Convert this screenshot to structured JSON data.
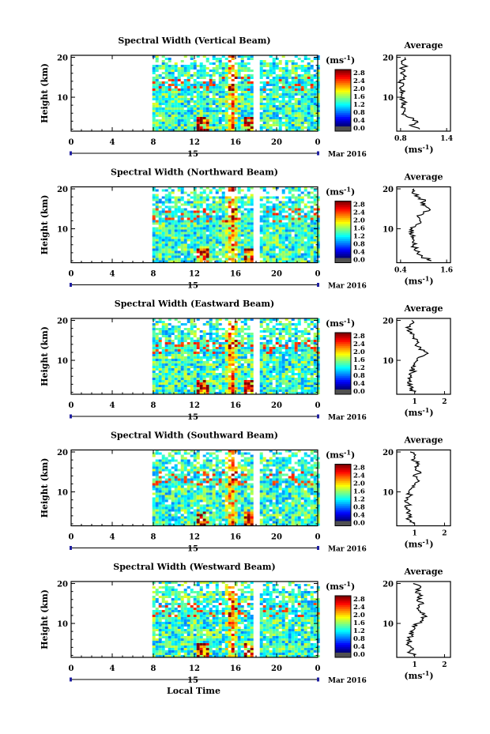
{
  "figure": {
    "xlabel_bottom": "Local Time",
    "date_label": "Mar 2016",
    "day_label": "15"
  },
  "colorbar": {
    "unit": "(ms",
    "unit_sup": "-1",
    "unit_close": ")",
    "ticks": [
      "2.8",
      "2.4",
      "2.0",
      "1.6",
      "1.2",
      "0.8",
      "0.4",
      "0.0"
    ],
    "colors": [
      "#ff2a00",
      "#ff7f00",
      "#ffd200",
      "#c8ff3c",
      "#3cffc8",
      "#00c8ff",
      "#0064ff",
      "#1e2aa0",
      "#505050"
    ]
  },
  "chart_data": [
    {
      "type": "heatmap",
      "title": "Spectral Width (Vertical Beam)",
      "ylabel": "Height (km)",
      "xlabel": "",
      "xlim": [
        0,
        24
      ],
      "ylim": [
        1.5,
        20.5
      ],
      "xticks": [
        "0",
        "4",
        "8",
        "12",
        "16",
        "20",
        "0"
      ],
      "yticks": [
        "20",
        "10"
      ],
      "data_start_hour": 7.9,
      "gap_hours": [
        17.6,
        18.1
      ],
      "value_range": [
        0,
        3.0
      ],
      "avg_title": "Average",
      "avg_xlabel": "(ms",
      "avg_xticks": [
        "0.8",
        "1.4"
      ],
      "avg_xlim": [
        0.75,
        1.45
      ],
      "profile": {
        "height": [
          2,
          3,
          4,
          5,
          6,
          7,
          8,
          9,
          10,
          11,
          12,
          13,
          14,
          15,
          16,
          17,
          18,
          19,
          20
        ],
        "width": [
          1.05,
          0.92,
          1.02,
          0.9,
          0.84,
          0.86,
          0.82,
          0.85,
          0.8,
          0.83,
          0.81,
          0.84,
          0.8,
          0.84,
          0.8,
          0.83,
          0.85,
          0.81,
          0.86
        ]
      }
    },
    {
      "type": "heatmap",
      "title": "Spectral Width (Northward Beam)",
      "ylabel": "Height (km)",
      "xlabel": "",
      "xlim": [
        0,
        24
      ],
      "ylim": [
        1.5,
        20.5
      ],
      "xticks": [
        "0",
        "4",
        "8",
        "12",
        "16",
        "20",
        "0"
      ],
      "yticks": [
        "20",
        "10"
      ],
      "data_start_hour": 7.9,
      "gap_hours": [
        17.6,
        18.1
      ],
      "value_range": [
        0,
        3.0
      ],
      "avg_title": "Average",
      "avg_xlabel": "(ms",
      "avg_xticks": [
        "0.4",
        "1.6"
      ],
      "avg_xlim": [
        0.3,
        1.7
      ],
      "profile": {
        "height": [
          2,
          3,
          4,
          5,
          6,
          7,
          8,
          9,
          10,
          11,
          12,
          13,
          14,
          15,
          16,
          17,
          18,
          19,
          20
        ],
        "width": [
          1.2,
          0.95,
          0.85,
          0.78,
          0.72,
          0.75,
          0.68,
          0.72,
          0.7,
          0.8,
          0.9,
          0.85,
          1.0,
          1.15,
          0.95,
          1.05,
          0.85,
          0.7,
          0.75
        ]
      }
    },
    {
      "type": "heatmap",
      "title": "Spectral Width (Eastward Beam)",
      "ylabel": "Height (km)",
      "xlabel": "",
      "xlim": [
        0,
        24
      ],
      "ylim": [
        1.5,
        20.5
      ],
      "xticks": [
        "0",
        "4",
        "8",
        "12",
        "16",
        "20",
        "0"
      ],
      "yticks": [
        "20",
        "10"
      ],
      "data_start_hour": 7.9,
      "gap_hours": [
        17.6,
        18.1
      ],
      "value_range": [
        0,
        3.0
      ],
      "avg_title": "Average",
      "avg_xlabel": "(ms",
      "avg_xticks": [
        "1",
        "2"
      ],
      "avg_xlim": [
        0.4,
        2.2
      ],
      "profile": {
        "height": [
          2,
          3,
          4,
          5,
          6,
          7,
          8,
          9,
          10,
          11,
          12,
          13,
          14,
          15,
          16,
          17,
          18,
          19,
          20
        ],
        "width": [
          1.0,
          0.85,
          0.9,
          0.82,
          0.86,
          0.95,
          0.9,
          1.0,
          1.1,
          1.25,
          1.4,
          1.2,
          1.05,
          1.1,
          0.95,
          0.9,
          0.8,
          0.85,
          0.9
        ]
      }
    },
    {
      "type": "heatmap",
      "title": "Spectral Width (Southward Beam)",
      "ylabel": "Height (km)",
      "xlabel": "",
      "xlim": [
        0,
        24
      ],
      "ylim": [
        1.5,
        20.5
      ],
      "xticks": [
        "0",
        "4",
        "8",
        "12",
        "16",
        "20",
        "0"
      ],
      "yticks": [
        "20",
        "10"
      ],
      "data_start_hour": 7.9,
      "gap_hours": [
        17.6,
        18.1
      ],
      "value_range": [
        0,
        3.0
      ],
      "avg_title": "Average",
      "avg_xlabel": "(ms",
      "avg_xticks": [
        "1",
        "2"
      ],
      "avg_xlim": [
        0.4,
        2.2
      ],
      "profile": {
        "height": [
          2,
          3,
          4,
          5,
          6,
          7,
          8,
          9,
          10,
          11,
          12,
          13,
          14,
          15,
          16,
          17,
          18,
          19,
          20
        ],
        "width": [
          0.95,
          0.82,
          0.8,
          0.78,
          0.75,
          0.8,
          0.76,
          0.85,
          0.8,
          0.9,
          1.0,
          1.1,
          0.95,
          1.2,
          1.05,
          1.15,
          0.9,
          1.0,
          0.85
        ]
      }
    },
    {
      "type": "heatmap",
      "title": "Spectral Width (Westward Beam)",
      "ylabel": "Height (km)",
      "xlabel": "",
      "xlim": [
        0,
        24
      ],
      "ylim": [
        1.5,
        20.5
      ],
      "xticks": [
        "0",
        "4",
        "8",
        "12",
        "16",
        "20",
        "0"
      ],
      "yticks": [
        "20",
        "10"
      ],
      "data_start_hour": 7.9,
      "gap_hours": [
        17.6,
        18.1
      ],
      "value_range": [
        0,
        3.0
      ],
      "avg_title": "Average",
      "avg_xlabel": "(ms",
      "avg_xticks": [
        "1",
        "2"
      ],
      "avg_xlim": [
        0.4,
        2.2
      ],
      "profile": {
        "height": [
          2,
          3,
          4,
          5,
          6,
          7,
          8,
          9,
          10,
          11,
          12,
          13,
          14,
          15,
          16,
          17,
          18,
          19,
          20
        ],
        "width": [
          0.95,
          0.85,
          0.88,
          0.8,
          0.84,
          0.9,
          0.86,
          1.0,
          1.1,
          1.25,
          1.35,
          1.2,
          1.15,
          1.3,
          1.1,
          1.25,
          1.05,
          1.2,
          0.95
        ]
      }
    }
  ]
}
